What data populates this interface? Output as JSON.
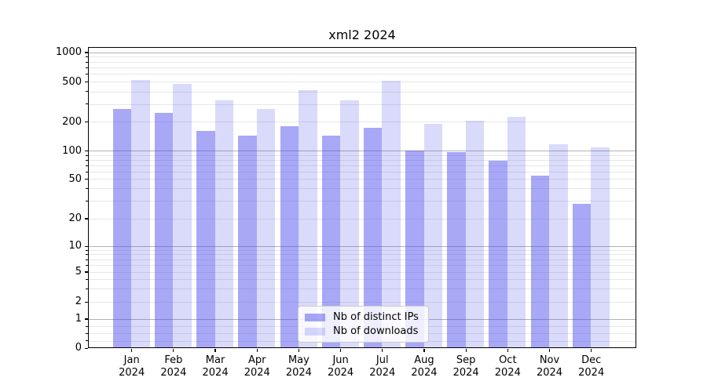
{
  "chart_data": {
    "type": "bar",
    "title": "xml2 2024",
    "categories": [
      "Jan 2024",
      "Feb 2024",
      "Mar 2024",
      "Apr 2024",
      "May 2024",
      "Jun 2024",
      "Jul 2024",
      "Aug 2024",
      "Sep 2024",
      "Oct 2024",
      "Nov 2024",
      "Dec 2024"
    ],
    "series": [
      {
        "name": "Nb of distinct IPs",
        "key": "distinct-ips",
        "color": "#4646EB78",
        "values": [
          270,
          245,
          160,
          145,
          180,
          145,
          175,
          102,
          98,
          78,
          54,
          28
        ]
      },
      {
        "name": "Nb of downloads",
        "key": "downloads",
        "color": "#4646EB33",
        "values": [
          520,
          480,
          330,
          270,
          410,
          330,
          515,
          190,
          205,
          225,
          118,
          108
        ]
      }
    ],
    "yscale": "symlog",
    "ylim": [
      0,
      1000
    ],
    "yticks": [
      0,
      1,
      2,
      5,
      10,
      20,
      50,
      100,
      200,
      500,
      1000
    ],
    "grid": true,
    "legend": {
      "position": "lower center",
      "labels": [
        "Nb of distinct IPs",
        "Nb of downloads"
      ]
    }
  },
  "colors": {
    "bar_distinct_ips": "#4646EB78",
    "bar_downloads": "#4646EB33",
    "major_gridline": "#b3b3b3",
    "minor_gridline": "#e7e7e7",
    "axis": "#000000",
    "background": "#ffffff",
    "legend_border": "#cccccc"
  }
}
